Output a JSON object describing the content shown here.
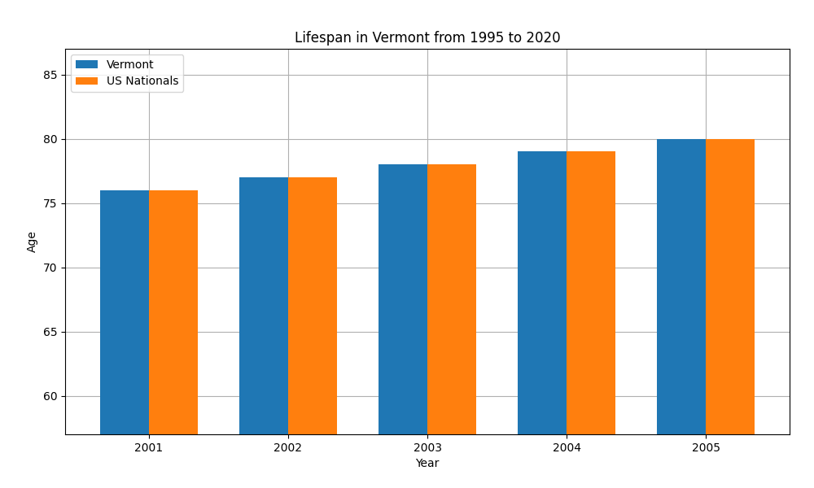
{
  "chart_data": {
    "type": "bar",
    "title": "Lifespan in Vermont from 1995 to 2020",
    "x_label": "Year",
    "y_label": "Age",
    "categories": [
      "2001",
      "2002",
      "2003",
      "2004",
      "2005"
    ],
    "series": [
      {
        "name": "Vermont",
        "values": [
          76,
          77,
          78,
          79,
          80
        ]
      },
      {
        "name": "US Nationals",
        "values": [
          76,
          77,
          78,
          79,
          80
        ]
      }
    ],
    "ylim": [
      57,
      87
    ],
    "yticks": [
      60,
      65,
      70,
      75,
      80,
      85
    ],
    "grid": true,
    "legend": "upper left"
  }
}
